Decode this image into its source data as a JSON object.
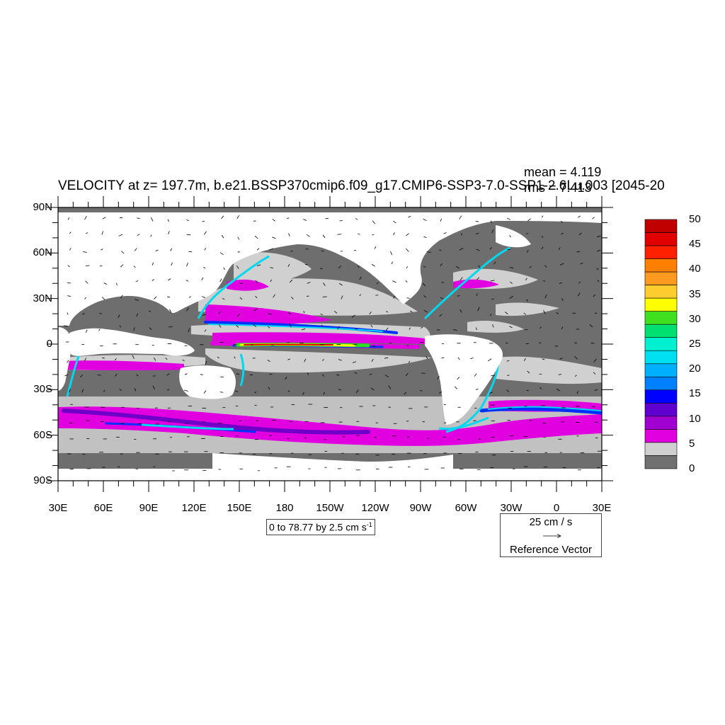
{
  "title": "VELOCITY at z= 197.7m, b.e21.BSSP370cmip6.f09_g17.CMIP6-SSP3-7.0-SSP1-2.6Lu.003 [2045-20",
  "stats": {
    "mean": "mean = 4.119",
    "rms": "rms = 7.413"
  },
  "lat_labels": [
    "90N",
    "60N",
    "30N",
    "0",
    "30S",
    "60S",
    "90S"
  ],
  "lon_labels": [
    "30E",
    "60E",
    "90E",
    "120E",
    "150E",
    "180",
    "150W",
    "120W",
    "90W",
    "60W",
    "30W",
    "0",
    "30E"
  ],
  "colorbar": {
    "labels": [
      "50",
      "45",
      "40",
      "35",
      "30",
      "25",
      "20",
      "15",
      "10",
      "5",
      "0"
    ],
    "colors": [
      "#c00000",
      "#e00000",
      "#ff2000",
      "#ff8000",
      "#ff9a20",
      "#ffcc30",
      "#ffff00",
      "#40e020",
      "#00e070",
      "#00f0d0",
      "#00e0f0",
      "#00b0ff",
      "#0080ff",
      "#0000ff",
      "#6000d0",
      "#a000d0",
      "#e000e0",
      "#d0d0d0",
      "#707070"
    ]
  },
  "contour_info": "0 to 78.77 by 2.5 cm s",
  "contour_info_sup": "-1",
  "reference_vector": {
    "speed": "25 cm / s",
    "label": "Reference Vector"
  },
  "map_colors": {
    "low": "#6e6e6e",
    "light": "#d0d0d0",
    "magenta": "#e000e0",
    "purple": "#7000c8",
    "blue": "#0030ff",
    "cyan": "#00d8f0",
    "green": "#30e020",
    "yellow": "#ffff00",
    "orange": "#ff8000",
    "red": "#e00000",
    "land": "#ffffff"
  }
}
